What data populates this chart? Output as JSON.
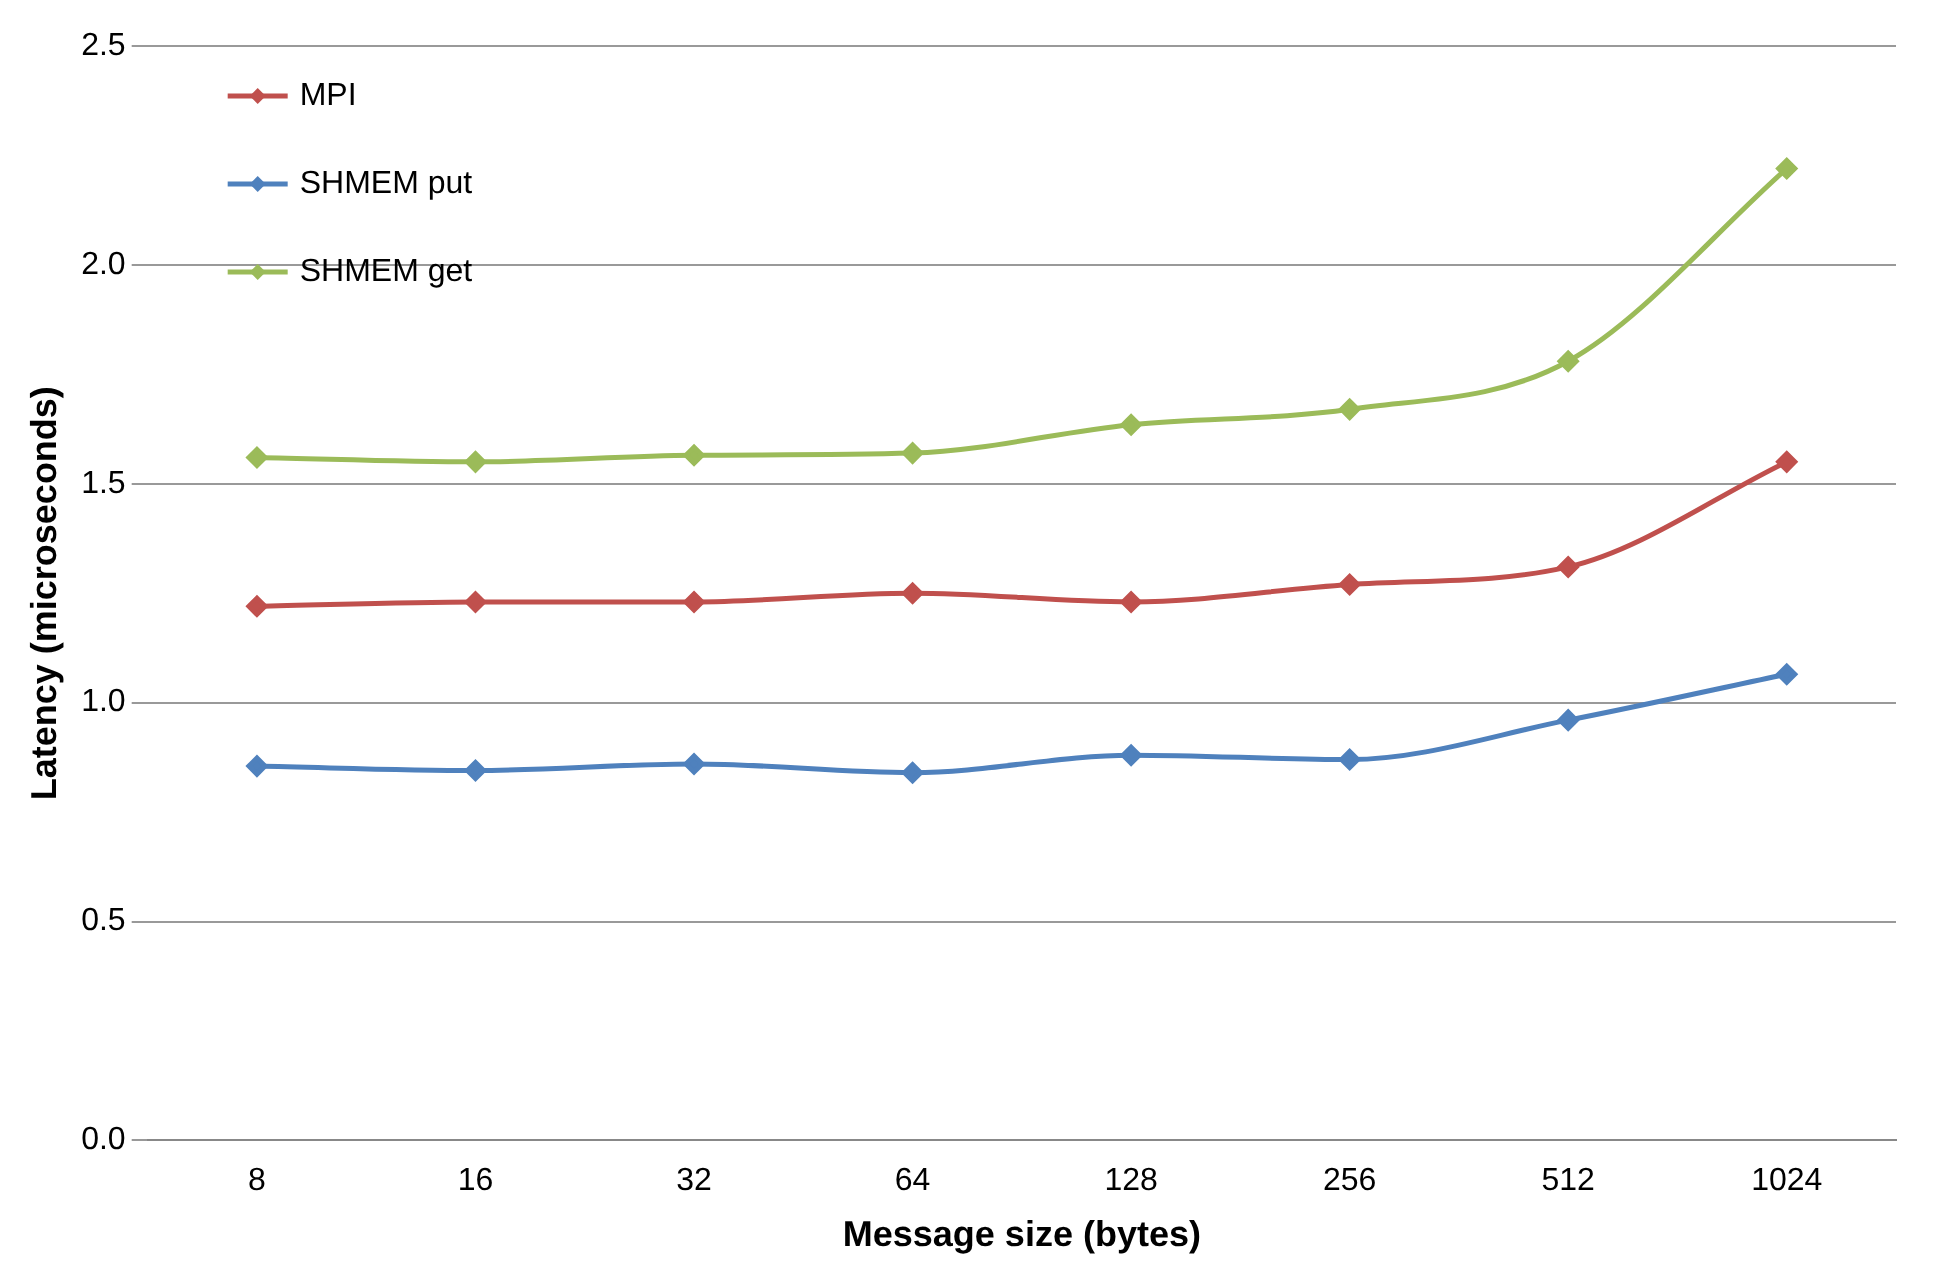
{
  "chart_data": {
    "type": "line",
    "xlabel": "Message size (bytes)",
    "ylabel": "Latency (microseconds)",
    "categories": [
      "8",
      "16",
      "32",
      "64",
      "128",
      "256",
      "512",
      "1024"
    ],
    "series": [
      {
        "name": "MPI",
        "color": "#c0504d",
        "values": [
          1.22,
          1.23,
          1.23,
          1.25,
          1.23,
          1.27,
          1.31,
          1.55
        ]
      },
      {
        "name": "SHMEM put",
        "color": "#4f81bd",
        "values": [
          0.855,
          0.845,
          0.86,
          0.84,
          0.88,
          0.87,
          0.96,
          1.065
        ]
      },
      {
        "name": "SHMEM get",
        "color": "#9bbb59",
        "values": [
          1.56,
          1.55,
          1.565,
          1.57,
          1.635,
          1.67,
          1.78,
          2.22
        ]
      }
    ],
    "ylim": [
      0,
      2.5
    ],
    "yticks": [
      {
        "value": 0,
        "label": "0.0"
      },
      {
        "value": 0.5,
        "label": "0.5"
      },
      {
        "value": 1,
        "label": "1.0"
      },
      {
        "value": 1.5,
        "label": "1.5"
      },
      {
        "value": 2,
        "label": "2.0"
      },
      {
        "value": 2.5,
        "label": "2.5"
      }
    ],
    "grid": "y",
    "legend": "top left",
    "marker": "diamond",
    "line_style": "solid"
  }
}
